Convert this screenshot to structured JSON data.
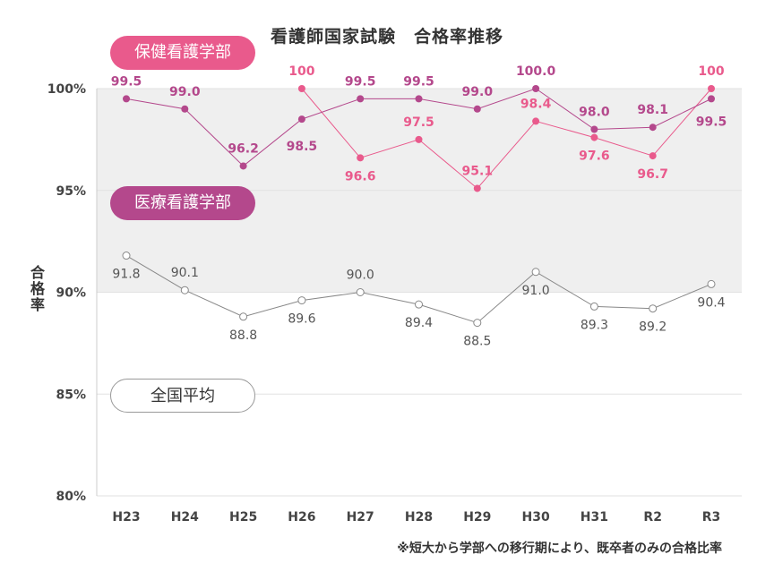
{
  "chart_data": {
    "type": "line",
    "title": "看護師国家試験　合格率推移",
    "ylabel": "合格率",
    "categories": [
      "H23",
      "H24",
      "H25",
      "H26",
      "H27",
      "H28",
      "H29",
      "H30",
      "H31",
      "R2",
      "R3"
    ],
    "ylim": [
      80,
      100
    ],
    "yticks": [
      "80%",
      "85%",
      "90%",
      "95%",
      "100%"
    ],
    "series": [
      {
        "name": "保健看護学部",
        "color": "#e95a8c",
        "values": [
          null,
          null,
          null,
          100,
          96.6,
          97.5,
          95.1,
          98.4,
          97.6,
          96.7,
          100
        ],
        "labels": [
          null,
          null,
          null,
          "100",
          "96.6",
          "97.5",
          "95.1",
          "98.4",
          "97.6",
          "96.7",
          "100"
        ]
      },
      {
        "name": "医療看護学部",
        "color": "#b4488c",
        "values": [
          99.5,
          99.0,
          96.2,
          98.5,
          99.5,
          99.5,
          99.0,
          100.0,
          98.0,
          98.1,
          99.5
        ],
        "labels": [
          "99.5",
          "99.0",
          "96.2",
          "98.5",
          "99.5",
          "99.5",
          "99.0",
          "100.0",
          "98.0",
          "98.1",
          "99.5"
        ]
      },
      {
        "name": "全国平均",
        "color": "#888888",
        "values": [
          91.8,
          90.1,
          88.8,
          89.6,
          90.0,
          89.4,
          88.5,
          91.0,
          89.3,
          89.2,
          90.4
        ],
        "labels": [
          "91.8",
          "90.1",
          "88.8",
          "89.6",
          "90.0",
          "89.4",
          "88.5",
          "91.0",
          "89.3",
          "89.2",
          "90.4"
        ]
      }
    ],
    "shaded_band": [
      90,
      100
    ],
    "legend_placement": "inline-left"
  },
  "footnote": "※短大から学部への移行期により、既卒者のみの合格比率"
}
